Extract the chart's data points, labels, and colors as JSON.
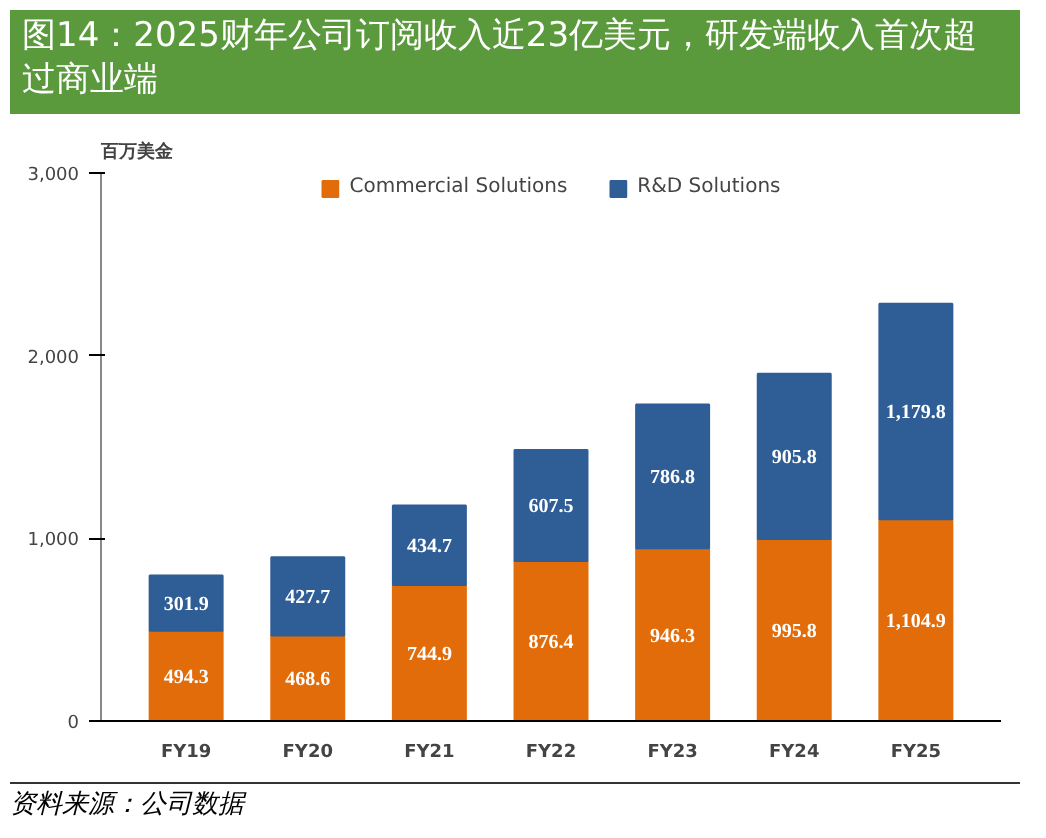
{
  "chart_data": {
    "type": "bar",
    "title": "图14：2025财年公司订阅收入近23亿美元，研发端收入首次超过商业端",
    "ylabel": "百万美金",
    "categories": [
      "FY19",
      "FY20",
      "FY21",
      "FY22",
      "FY23",
      "FY24",
      "FY25"
    ],
    "stacked": true,
    "series": [
      {
        "name": "Commercial Solutions",
        "color": "#e36c0a",
        "values": [
          494.3,
          468.6,
          744.9,
          876.4,
          946.3,
          995.8,
          1104.9
        ],
        "value_labels": [
          "494.3",
          "468.6",
          "744.9",
          "876.4",
          "946.3",
          "995.8",
          "1,104.9"
        ]
      },
      {
        "name": "R&D Solutions",
        "color": "#2f5d95",
        "values": [
          301.9,
          427.7,
          434.7,
          607.5,
          786.8,
          905.8,
          1179.8
        ],
        "value_labels": [
          "301.9",
          "427.7",
          "434.7",
          "607.5",
          "786.8",
          "905.8",
          "1,179.8"
        ]
      }
    ],
    "ylim": [
      0,
      3000
    ],
    "yticks": [
      {
        "value": 0,
        "label": "0"
      },
      {
        "value": 1000,
        "label": "1,000"
      },
      {
        "value": 2000,
        "label": "2,000"
      },
      {
        "value": 3000,
        "label": "3,000"
      }
    ],
    "legend": "top",
    "grid": false,
    "annotations": [
      "资料来源：公司数据"
    ]
  }
}
